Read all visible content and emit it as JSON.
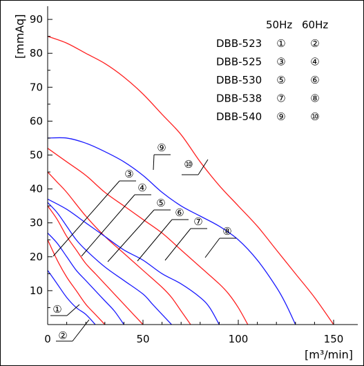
{
  "chart_data": {
    "type": "line",
    "title": "",
    "xlabel": "[m³/min]",
    "ylabel": "[mmAq]",
    "xlim": [
      0,
      160
    ],
    "ylim": [
      0,
      92
    ],
    "x_ticks": [
      "0",
      "50",
      "100",
      "150"
    ],
    "y_ticks": [
      "10",
      "20",
      "30",
      "40",
      "50",
      "60",
      "70",
      "80",
      "90"
    ],
    "grid": false,
    "legend": {
      "placement": "top-right",
      "header": [
        "50Hz",
        "60Hz"
      ],
      "rows": [
        {
          "model": "DBB-523",
          "hz50": "①",
          "hz60": "②"
        },
        {
          "model": "DBB-525",
          "hz50": "③",
          "hz60": "④"
        },
        {
          "model": "DBB-530",
          "hz50": "⑤",
          "hz60": "⑥"
        },
        {
          "model": "DBB-538",
          "hz50": "⑦",
          "hz60": "⑧"
        },
        {
          "model": "DBB-540",
          "hz50": "⑨",
          "hz60": "⑩"
        }
      ]
    },
    "colors": {
      "hz50": "#1a1aff",
      "hz60": "#ff2020"
    },
    "series": [
      {
        "id": "1",
        "label": "①",
        "freq": "50Hz",
        "x": [
          0,
          5,
          10,
          15,
          20,
          25
        ],
        "y": [
          16,
          12,
          8,
          5,
          3,
          0
        ]
      },
      {
        "id": "2",
        "label": "②",
        "freq": "60Hz",
        "x": [
          0,
          5,
          10,
          15,
          20,
          25,
          30
        ],
        "y": [
          25,
          19,
          14,
          10,
          6,
          3,
          0
        ]
      },
      {
        "id": "3",
        "label": "③",
        "freq": "50Hz",
        "x": [
          0,
          5,
          10,
          15,
          20,
          25,
          30,
          35,
          40
        ],
        "y": [
          27,
          24,
          20,
          16,
          13,
          10,
          7,
          4,
          0
        ]
      },
      {
        "id": "4",
        "label": "④",
        "freq": "60Hz",
        "x": [
          0,
          5,
          10,
          15,
          20,
          25,
          30,
          35,
          40,
          45,
          50
        ],
        "y": [
          35,
          31,
          26,
          22,
          18,
          15,
          12,
          9,
          6,
          3,
          0
        ]
      },
      {
        "id": "5",
        "label": "⑤",
        "freq": "50Hz",
        "x": [
          0,
          5,
          10,
          15,
          20,
          30,
          40,
          50,
          55,
          60,
          65
        ],
        "y": [
          36,
          33,
          29,
          25,
          22,
          17,
          13,
          9,
          6,
          3,
          0
        ]
      },
      {
        "id": "6",
        "label": "⑥",
        "freq": "60Hz",
        "x": [
          0,
          5,
          10,
          20,
          30,
          40,
          50,
          60,
          65,
          70,
          75
        ],
        "y": [
          45,
          42,
          39,
          32,
          26,
          21,
          16,
          11,
          8,
          4,
          0
        ]
      },
      {
        "id": "7",
        "label": "⑦",
        "freq": "50Hz",
        "x": [
          0,
          10,
          20,
          30,
          40,
          50,
          60,
          70,
          80,
          85,
          90
        ],
        "y": [
          37,
          34,
          30,
          26,
          22,
          19,
          15,
          12,
          8,
          5,
          0
        ]
      },
      {
        "id": "8",
        "label": "⑧",
        "freq": "60Hz",
        "x": [
          0,
          10,
          20,
          30,
          40,
          50,
          60,
          70,
          80,
          90,
          95,
          100,
          105
        ],
        "y": [
          52,
          48,
          44,
          39,
          35,
          31,
          27,
          22,
          17,
          12,
          9,
          5,
          0
        ]
      },
      {
        "id": "9",
        "label": "⑨",
        "freq": "50Hz",
        "x": [
          0,
          10,
          20,
          30,
          40,
          50,
          60,
          70,
          80,
          90,
          100,
          110,
          120,
          125,
          130
        ],
        "y": [
          55,
          55,
          53.5,
          51,
          48,
          44,
          39,
          35,
          32,
          29,
          25,
          19,
          11,
          6,
          0
        ]
      },
      {
        "id": "10",
        "label": "⑩",
        "freq": "60Hz",
        "x": [
          0,
          10,
          20,
          30,
          40,
          50,
          60,
          70,
          80,
          90,
          100,
          110,
          120,
          130,
          140,
          150
        ],
        "y": [
          85,
          83,
          80,
          77,
          73,
          68,
          62,
          56,
          48,
          41,
          35,
          29,
          22,
          15,
          8,
          0
        ]
      }
    ]
  }
}
